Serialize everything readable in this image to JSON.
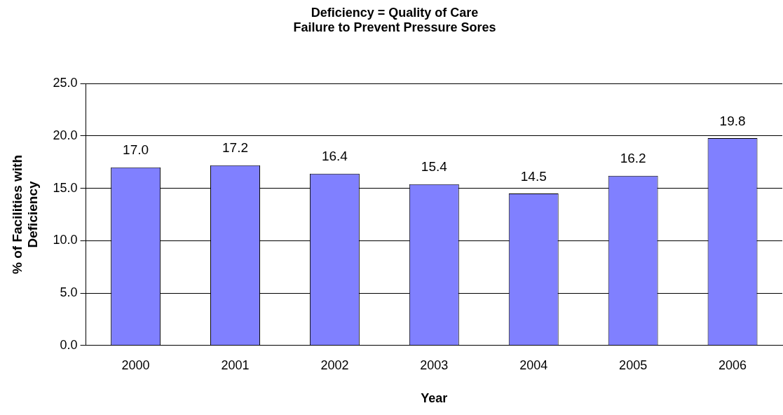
{
  "chart_data": {
    "type": "bar",
    "title": "Deficiency = Quality of Care\nFailure to Prevent Pressure Sores",
    "xlabel": "Year",
    "ylabel": "% of Facilities with\nDeficiency",
    "categories": [
      "2000",
      "2001",
      "2002",
      "2003",
      "2004",
      "2005",
      "2006"
    ],
    "values": [
      17.0,
      17.2,
      16.4,
      15.4,
      14.5,
      16.2,
      19.8
    ],
    "value_labels": [
      "17.0",
      "17.2",
      "16.4",
      "15.4",
      "14.5",
      "16.2",
      "19.8"
    ],
    "color": "#8080ff",
    "ylim": [
      0,
      25
    ],
    "yticks": [
      {
        "value": 0,
        "label": "0.0"
      },
      {
        "value": 5,
        "label": "5.0"
      },
      {
        "value": 10,
        "label": "10.0"
      },
      {
        "value": 15,
        "label": "15.0"
      },
      {
        "value": 20,
        "label": "20.0"
      },
      {
        "value": 25,
        "label": "25.0"
      }
    ],
    "grid": "y",
    "legend": false
  }
}
